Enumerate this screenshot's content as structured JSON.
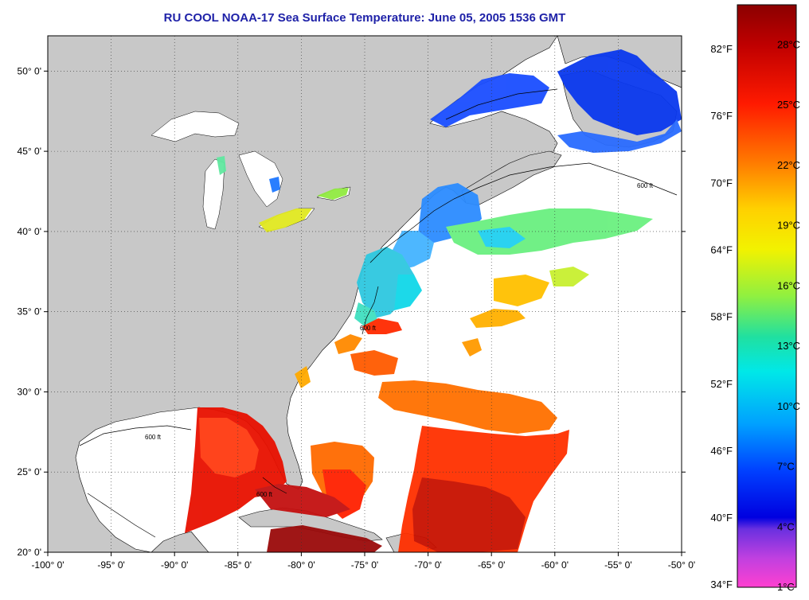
{
  "title": "RU COOL  NOAA-17  Sea Surface Temperature:  June 05, 2005 1536 GMT",
  "map": {
    "lon_range": [
      -100,
      -50
    ],
    "lat_range": [
      20,
      52.2
    ],
    "lon_ticks": [
      {
        "value": -100,
        "label": "-100° 0'"
      },
      {
        "value": -95,
        "label": "-95° 0'"
      },
      {
        "value": -90,
        "label": "-90° 0'"
      },
      {
        "value": -85,
        "label": "-85° 0'"
      },
      {
        "value": -80,
        "label": "-80° 0'"
      },
      {
        "value": -75,
        "label": "-75° 0'"
      },
      {
        "value": -70,
        "label": "-70° 0'"
      },
      {
        "value": -65,
        "label": "-65° 0'"
      },
      {
        "value": -60,
        "label": "-60° 0'"
      },
      {
        "value": -55,
        "label": "-55° 0'"
      },
      {
        "value": -50,
        "label": "-50° 0'"
      }
    ],
    "lat_ticks": [
      {
        "value": 20,
        "label": "20° 0'"
      },
      {
        "value": 25,
        "label": "25° 0'"
      },
      {
        "value": 30,
        "label": "30° 0'"
      },
      {
        "value": 35,
        "label": "35° 0'"
      },
      {
        "value": 40,
        "label": "40° 0'"
      },
      {
        "value": 45,
        "label": "45° 0'"
      },
      {
        "value": 50,
        "label": "50° 0'"
      }
    ],
    "grid": "dotted",
    "contour_label": "600 ft",
    "colors": {
      "land": "#c8c8c8",
      "ocean": "#ffffff",
      "grid": "#333333"
    }
  },
  "colorbar": {
    "celsius_range": [
      1,
      30
    ],
    "celsius_labels": [
      "28°C",
      "25°C",
      "22°C",
      "19°C",
      "16°C",
      "13°C",
      "10°C",
      "7°C",
      "4°C",
      "1°C"
    ],
    "fahrenheit_labels": [
      "82°F",
      "76°F",
      "70°F",
      "64°F",
      "58°F",
      "52°F",
      "46°F",
      "40°F",
      "34°F"
    ],
    "gradient_colors": [
      "#8b0000",
      "#d00000",
      "#ff2a00",
      "#ff8000",
      "#ffc800",
      "#f0f000",
      "#a0f040",
      "#30e090",
      "#00e0e0",
      "#00a8ff",
      "#0050ff",
      "#0000e0",
      "#8040e0",
      "#d040e0",
      "#ff40d0"
    ]
  }
}
